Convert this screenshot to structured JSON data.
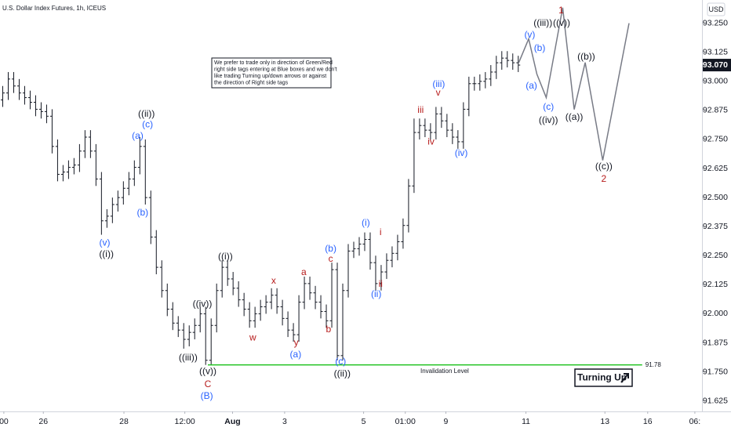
{
  "chart_data": {
    "type": "ohlc",
    "title": "U.S. Dollar Index Futures, 1h, ICEUS",
    "currency": "USD",
    "bar_color": "#131722",
    "open": [
      92.92,
      92.95,
      93.01,
      92.98,
      92.95,
      92.93,
      92.91,
      92.88,
      92.87,
      92.85,
      92.72,
      92.6,
      92.61,
      92.63,
      92.64,
      92.7,
      92.76,
      92.7,
      92.58,
      92.4,
      92.42,
      92.47,
      92.5,
      92.54,
      92.58,
      92.63,
      92.72,
      92.5,
      92.33,
      92.2,
      92.1,
      92.02,
      91.96,
      91.93,
      91.89,
      91.92,
      91.95,
      92.0,
      91.8,
      91.95,
      92.1,
      92.2,
      92.15,
      92.11,
      92.06,
      92.02,
      91.97,
      92.0,
      92.03,
      92.05,
      92.08,
      92.03,
      91.98,
      91.93,
      91.91,
      92.05,
      92.13,
      92.09,
      92.05,
      92.01,
      91.97,
      92.19,
      91.82,
      92.1,
      92.27,
      92.28,
      92.3,
      92.32,
      92.22,
      92.13,
      92.18,
      92.23,
      92.26,
      92.31,
      92.38,
      92.55,
      92.78,
      92.81,
      92.79,
      92.78,
      92.86,
      92.83,
      92.79,
      92.76,
      92.74,
      92.88,
      92.99,
      92.99,
      93.0,
      93.01,
      93.04,
      93.08,
      93.1,
      93.09,
      93.08
    ],
    "high": [
      92.98,
      93.04,
      93.04,
      93.01,
      92.98,
      92.96,
      92.94,
      92.91,
      92.9,
      92.88,
      92.75,
      92.64,
      92.66,
      92.67,
      92.73,
      92.79,
      92.79,
      92.73,
      92.61,
      92.45,
      92.5,
      92.53,
      92.57,
      92.61,
      92.66,
      92.76,
      92.75,
      92.53,
      92.36,
      92.23,
      92.13,
      92.05,
      91.99,
      91.96,
      91.95,
      91.98,
      92.03,
      92.03,
      91.98,
      92.13,
      92.23,
      92.23,
      92.18,
      92.14,
      92.09,
      92.05,
      92.03,
      92.06,
      92.08,
      92.11,
      92.11,
      92.06,
      92.01,
      91.96,
      92.08,
      92.16,
      92.16,
      92.12,
      92.08,
      92.04,
      92.22,
      92.22,
      92.13,
      92.3,
      92.31,
      92.33,
      92.35,
      92.35,
      92.25,
      92.21,
      92.26,
      92.29,
      92.34,
      92.41,
      92.58,
      92.84,
      92.84,
      92.84,
      92.82,
      92.89,
      92.89,
      92.86,
      92.82,
      92.79,
      92.91,
      93.02,
      93.02,
      93.03,
      93.04,
      93.07,
      93.11,
      93.13,
      93.13,
      93.12,
      93.11
    ],
    "low": [
      92.89,
      92.92,
      92.95,
      92.92,
      92.9,
      92.88,
      92.85,
      92.84,
      92.82,
      92.69,
      92.57,
      92.57,
      92.58,
      92.6,
      92.61,
      92.67,
      92.67,
      92.55,
      92.34,
      92.37,
      92.39,
      92.44,
      92.47,
      92.51,
      92.55,
      92.6,
      92.47,
      92.3,
      92.17,
      92.07,
      91.99,
      91.93,
      91.9,
      91.85,
      91.86,
      91.89,
      91.92,
      91.78,
      91.78,
      91.92,
      92.07,
      92.12,
      92.08,
      92.03,
      91.99,
      91.94,
      91.94,
      91.97,
      92.0,
      92.02,
      92.0,
      91.95,
      91.9,
      91.88,
      91.88,
      92.02,
      92.06,
      92.02,
      91.98,
      91.94,
      91.94,
      91.8,
      91.8,
      92.07,
      92.24,
      92.25,
      92.27,
      92.19,
      92.1,
      92.1,
      92.15,
      92.2,
      92.23,
      92.28,
      92.35,
      92.52,
      92.75,
      92.76,
      92.75,
      92.75,
      92.8,
      92.76,
      92.73,
      92.71,
      92.71,
      92.85,
      92.96,
      92.96,
      92.97,
      92.98,
      93.01,
      93.05,
      93.06,
      93.05,
      93.04
    ],
    "close": [
      92.95,
      93.01,
      92.98,
      92.95,
      92.93,
      92.91,
      92.88,
      92.87,
      92.85,
      92.72,
      92.6,
      92.61,
      92.63,
      92.64,
      92.7,
      92.76,
      92.7,
      92.58,
      92.4,
      92.42,
      92.47,
      92.5,
      92.54,
      92.58,
      92.63,
      92.72,
      92.5,
      92.33,
      92.2,
      92.1,
      92.02,
      91.96,
      91.93,
      91.89,
      91.92,
      91.95,
      92.0,
      91.8,
      91.95,
      92.1,
      92.2,
      92.15,
      92.11,
      92.06,
      92.02,
      91.97,
      92.0,
      92.03,
      92.05,
      92.08,
      92.03,
      91.98,
      91.93,
      91.91,
      92.05,
      92.13,
      92.09,
      92.05,
      92.01,
      91.97,
      92.19,
      91.82,
      92.1,
      92.27,
      92.28,
      92.3,
      92.32,
      92.22,
      92.13,
      92.18,
      92.23,
      92.26,
      92.31,
      92.38,
      92.55,
      92.78,
      92.81,
      92.79,
      92.78,
      92.86,
      92.83,
      92.79,
      92.76,
      92.74,
      92.88,
      92.99,
      92.99,
      93.0,
      93.01,
      93.04,
      93.08,
      93.1,
      93.09,
      93.08,
      93.07
    ],
    "xlim": [
      -0.5,
      127.5
    ],
    "ylim": [
      91.58,
      93.35
    ],
    "grid": false,
    "xticks": [
      {
        "value": 0.2,
        "label": "00"
      },
      {
        "value": 7.4,
        "label": "26"
      },
      {
        "value": 22.1,
        "label": "28"
      },
      {
        "value": 33.2,
        "label": "12:00"
      },
      {
        "value": 41.9,
        "label": "Aug"
      },
      {
        "value": 51.4,
        "label": "3"
      },
      {
        "value": 65.8,
        "label": "5"
      },
      {
        "value": 73.4,
        "label": "01:00"
      },
      {
        "value": 80.8,
        "label": "9"
      },
      {
        "value": 95.4,
        "label": "11"
      },
      {
        "value": 109.8,
        "label": "13"
      },
      {
        "value": 117.6,
        "label": "16"
      },
      {
        "value": 126.2,
        "label": "06:"
      }
    ],
    "yticks": [
      {
        "value": 93.25,
        "label": "93.250"
      },
      {
        "value": 93.125,
        "label": "93.125"
      },
      {
        "value": 93.0,
        "label": "93.000"
      },
      {
        "value": 92.875,
        "label": "92.875"
      },
      {
        "value": 92.75,
        "label": "92.750"
      },
      {
        "value": 92.625,
        "label": "92.625"
      },
      {
        "value": 92.5,
        "label": "92.500"
      },
      {
        "value": 92.375,
        "label": "92.375"
      },
      {
        "value": 92.25,
        "label": "92.250"
      },
      {
        "value": 92.125,
        "label": "92.125"
      },
      {
        "value": 92.0,
        "label": "92.000"
      },
      {
        "value": 91.875,
        "label": "91.875"
      },
      {
        "value": 91.75,
        "label": "91.750"
      },
      {
        "value": 91.625,
        "label": "91.625"
      }
    ],
    "last_price": {
      "value": 93.07,
      "label": "93.070"
    },
    "projection": {
      "color": "#787b86",
      "x": [
        94.1,
        95.9,
        97.4,
        99.1,
        102.1,
        104.2,
        106.2,
        109.4,
        114.2
      ],
      "y": [
        93.081,
        93.183,
        93.031,
        92.93,
        93.317,
        92.879,
        93.081,
        92.66,
        93.25
      ]
    },
    "invalidation": {
      "label": "Invalidation Level",
      "value": 91.78,
      "color": "#22c322",
      "x": [
        37.4,
        116.6
      ]
    },
    "note": [
      "We prefer to trade only in direction of Green/Red",
      "right side tags entering at Blue boxes and we don't",
      "like trading Turning up/down arrows or against",
      "the direction of Right side tags"
    ],
    "signal": "Turning Up",
    "wave_labels": [
      {
        "text": "((iii))",
        "x": 98.5,
        "y": 93.25,
        "color": "#131722"
      },
      {
        "text": "(v)",
        "x": 96.1,
        "y": 93.199,
        "color": "#2962ff"
      },
      {
        "text": "(b)",
        "x": 97.9,
        "y": 93.142,
        "color": "#2962ff"
      },
      {
        "text": "(a)",
        "x": 96.4,
        "y": 92.98,
        "color": "#2962ff"
      },
      {
        "text": "(c)",
        "x": 99.5,
        "y": 92.889,
        "color": "#2962ff"
      },
      {
        "text": "((iv))",
        "x": 99.5,
        "y": 92.832,
        "color": "#131722"
      },
      {
        "text": "1",
        "x": 101.8,
        "y": 93.304,
        "color": "#b71c1c"
      },
      {
        "text": "((v))",
        "x": 101.9,
        "y": 93.25,
        "color": "#131722"
      },
      {
        "text": "((b))",
        "x": 106.4,
        "y": 93.105,
        "color": "#131722"
      },
      {
        "text": "((a))",
        "x": 104.2,
        "y": 92.845,
        "color": "#131722"
      },
      {
        "text": "((c))",
        "x": 109.6,
        "y": 92.633,
        "color": "#131722"
      },
      {
        "text": "2",
        "x": 109.6,
        "y": 92.579,
        "color": "#b71c1c"
      },
      {
        "text": "(iii)",
        "x": 79.5,
        "y": 92.987,
        "color": "#2962ff"
      },
      {
        "text": "v",
        "x": 79.4,
        "y": 92.95,
        "color": "#b71c1c"
      },
      {
        "text": "iii",
        "x": 76.2,
        "y": 92.876,
        "color": "#b71c1c"
      },
      {
        "text": "iv",
        "x": 78.1,
        "y": 92.738,
        "color": "#b71c1c"
      },
      {
        "text": "(iv)",
        "x": 83.6,
        "y": 92.69,
        "color": "#2962ff"
      },
      {
        "text": "(a)",
        "x": 24.6,
        "y": 92.764,
        "color": "#2962ff"
      },
      {
        "text": "((ii))",
        "x": 26.2,
        "y": 92.859,
        "color": "#131722"
      },
      {
        "text": "(c)",
        "x": 26.4,
        "y": 92.812,
        "color": "#2962ff"
      },
      {
        "text": "(b)",
        "x": 25.5,
        "y": 92.434,
        "color": "#2962ff"
      },
      {
        "text": "(v)",
        "x": 18.6,
        "y": 92.303,
        "color": "#2962ff"
      },
      {
        "text": "((i))",
        "x": 18.9,
        "y": 92.255,
        "color": "#131722"
      },
      {
        "text": "((iv))",
        "x": 36.4,
        "y": 92.04,
        "color": "#131722"
      },
      {
        "text": "((iii))",
        "x": 33.8,
        "y": 91.81,
        "color": "#131722"
      },
      {
        "text": "((v))",
        "x": 37.4,
        "y": 91.75,
        "color": "#131722"
      },
      {
        "text": "C",
        "x": 37.4,
        "y": 91.696,
        "color": "#b71c1c"
      },
      {
        "text": "(B)",
        "x": 37.2,
        "y": 91.645,
        "color": "#2962ff"
      },
      {
        "text": "((i))",
        "x": 40.6,
        "y": 92.245,
        "color": "#131722"
      },
      {
        "text": "x",
        "x": 49.4,
        "y": 92.141,
        "color": "#b71c1c"
      },
      {
        "text": "w",
        "x": 45.6,
        "y": 91.895,
        "color": "#b71c1c"
      },
      {
        "text": "a",
        "x": 54.9,
        "y": 92.178,
        "color": "#b71c1c"
      },
      {
        "text": "y",
        "x": 53.5,
        "y": 91.874,
        "color": "#b71c1c"
      },
      {
        "text": "(a)",
        "x": 53.4,
        "y": 91.824,
        "color": "#2962ff"
      },
      {
        "text": "b",
        "x": 59.4,
        "y": 91.932,
        "color": "#b71c1c"
      },
      {
        "text": "(b)",
        "x": 59.8,
        "y": 92.279,
        "color": "#2962ff"
      },
      {
        "text": "c",
        "x": 59.8,
        "y": 92.235,
        "color": "#b71c1c"
      },
      {
        "text": "(c)",
        "x": 61.6,
        "y": 91.793,
        "color": "#2962ff"
      },
      {
        "text": "((ii))",
        "x": 61.9,
        "y": 91.74,
        "color": "#131722"
      },
      {
        "text": "(i)",
        "x": 66.2,
        "y": 92.39,
        "color": "#2962ff"
      },
      {
        "text": "i",
        "x": 68.9,
        "y": 92.35,
        "color": "#b71c1c"
      },
      {
        "text": "ii",
        "x": 68.9,
        "y": 92.127,
        "color": "#b71c1c"
      },
      {
        "text": "(ii)",
        "x": 68.1,
        "y": 92.083,
        "color": "#2962ff"
      }
    ]
  }
}
